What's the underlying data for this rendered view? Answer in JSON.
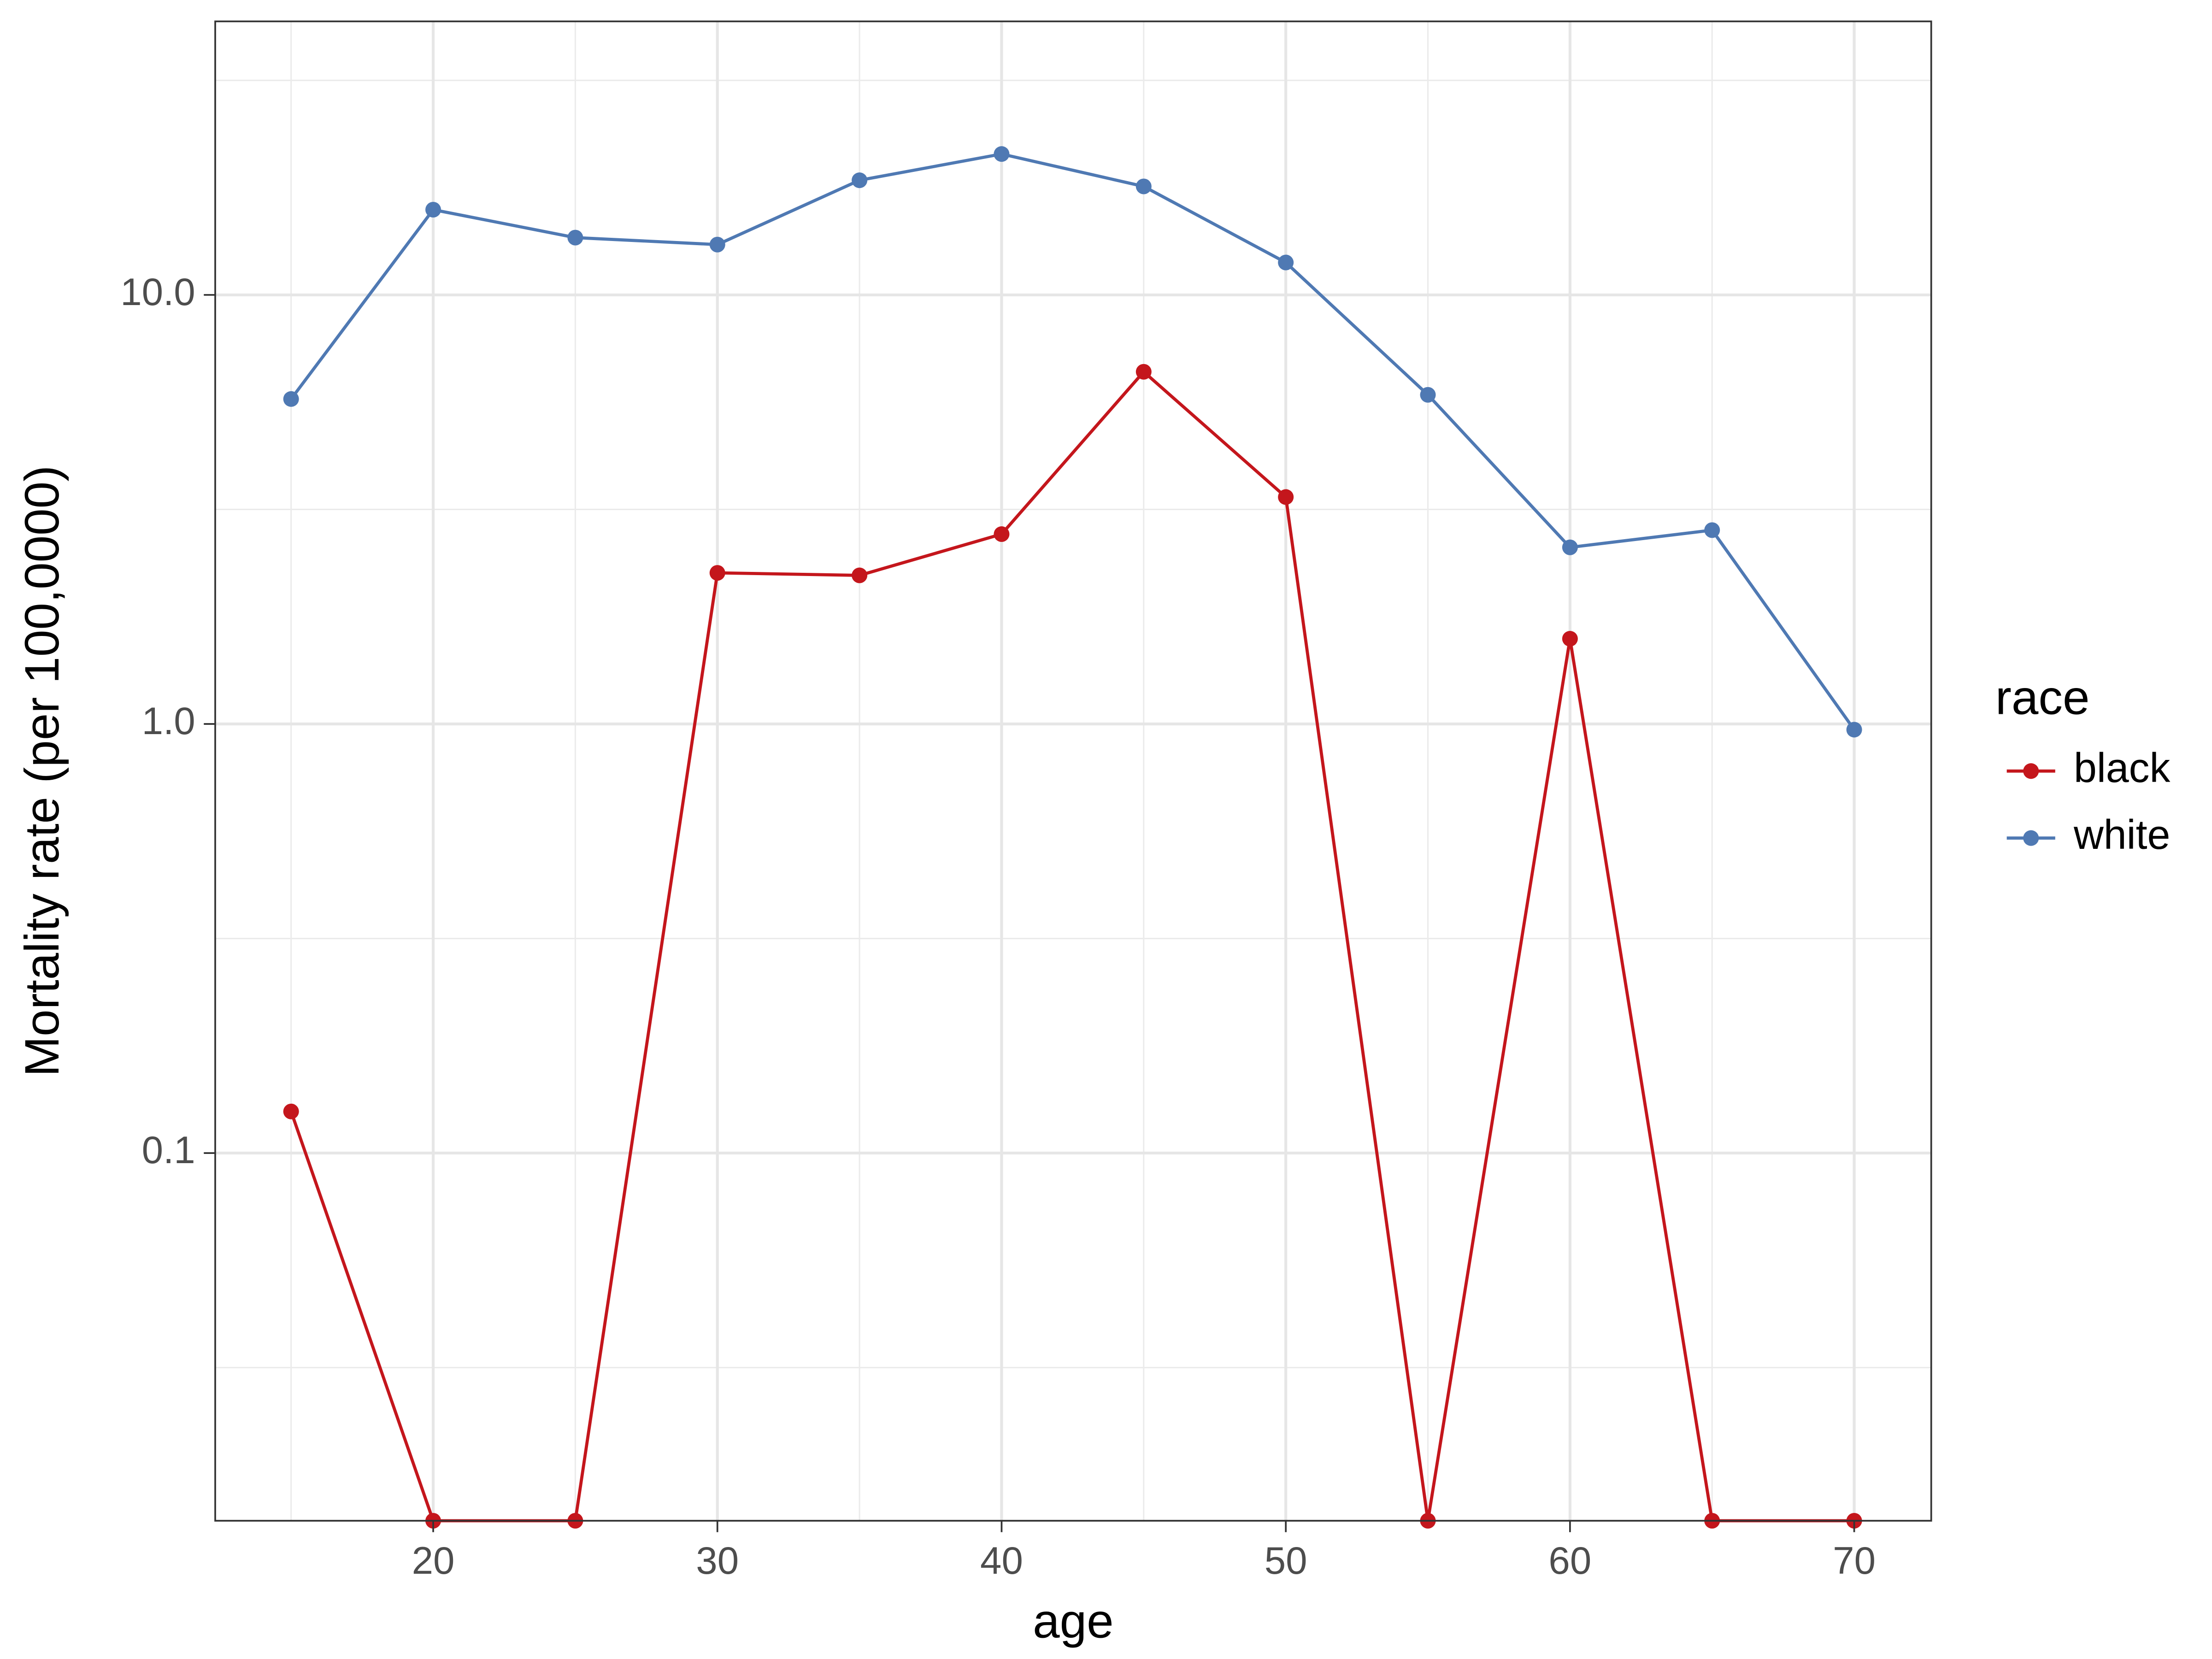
{
  "chart_data": {
    "type": "line",
    "x_label": "age",
    "y_label": "Mortality rate (per 100,0000)",
    "x": [
      15,
      20,
      25,
      30,
      35,
      40,
      45,
      50,
      55,
      60,
      65,
      70
    ],
    "series": [
      {
        "name": "black",
        "color": "#c4161c",
        "values": [
          0.125,
          0,
          0,
          2.25,
          2.22,
          2.77,
          6.62,
          3.38,
          0,
          1.58,
          0,
          0
        ]
      },
      {
        "name": "white",
        "color": "#4f79b3",
        "values": [
          5.72,
          15.8,
          13.6,
          13.1,
          18.5,
          21.3,
          17.9,
          11.9,
          5.85,
          2.58,
          2.83,
          0.97
        ]
      }
    ],
    "xlim": [
      12.33,
      72.71
    ],
    "xticks": [
      20,
      30,
      40,
      50,
      60,
      70
    ],
    "ylim": [
      0.0139,
      43.4
    ],
    "y_scale": "log",
    "yticks": [
      0.1,
      {
        "value": 1,
        "label": "1.0"
      },
      {
        "value": 10,
        "label": "10.0"
      }
    ],
    "grid": true,
    "legend_title": "race",
    "legend_position": "right"
  }
}
